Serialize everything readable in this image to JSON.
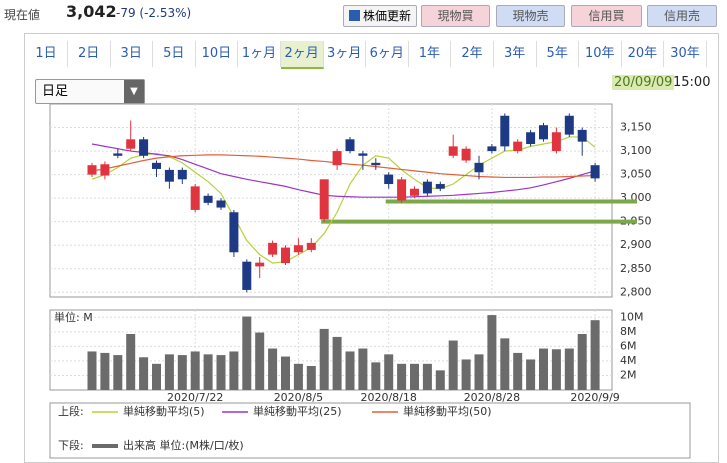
{
  "header": {
    "price_label": "現在値",
    "price": "3,042",
    "change": "-79 (-2.53%)",
    "buttons": [
      "株価更新",
      "現物買",
      "現物売",
      "信用買",
      "信用売"
    ]
  },
  "period_tabs": [
    "1日",
    "2日",
    "3日",
    "5日",
    "10日",
    "1ヶ月",
    "2ヶ月",
    "3ヶ月",
    "6ヶ月",
    "1年",
    "2年",
    "3年",
    "5年",
    "10年",
    "20年",
    "30年"
  ],
  "active_tab": 6,
  "interval_select": "日足",
  "date": "20/09/09",
  "time": "15:00",
  "legend": {
    "upper": "上段:",
    "lower": "下段:"
  },
  "chart_data": [
    {
      "type": "candlestick",
      "up_color": "#e0343f",
      "down_color": "#1f3a85",
      "open": [
        3050,
        3048,
        3095,
        3105,
        3125,
        3075,
        3060,
        3060,
        2975,
        3005,
        2995,
        2970,
        2865,
        2855,
        2880,
        2862,
        2885,
        2890,
        2955,
        3070,
        3125,
        3095,
        3075,
        3050,
        2995,
        3005,
        3035,
        3030,
        3090,
        3080,
        3075,
        3110,
        3175,
        3100,
        3140,
        3155,
        3100,
        3175,
        3145,
        3070
      ],
      "high": [
        3075,
        3078,
        3105,
        3165,
        3130,
        3080,
        3065,
        3065,
        3030,
        3010,
        3000,
        2975,
        2870,
        2875,
        2910,
        2900,
        2915,
        2915,
        3040,
        3105,
        3130,
        3100,
        3085,
        3055,
        3045,
        3025,
        3040,
        3035,
        3135,
        3110,
        3090,
        3115,
        3180,
        3125,
        3145,
        3160,
        3150,
        3180,
        3150,
        3075
      ],
      "low": [
        3045,
        3040,
        3085,
        3100,
        3085,
        3045,
        3020,
        3030,
        2970,
        2985,
        2975,
        2875,
        2800,
        2830,
        2875,
        2858,
        2880,
        2885,
        2950,
        3060,
        3095,
        3060,
        3060,
        3020,
        2990,
        3000,
        3005,
        3015,
        3085,
        3075,
        3040,
        3095,
        3100,
        3095,
        3110,
        3120,
        3095,
        3130,
        3090,
        3035
      ],
      "close": [
        3070,
        3072,
        3090,
        3125,
        3090,
        3062,
        3035,
        3040,
        3025,
        2990,
        2980,
        2885,
        2805,
        2863,
        2905,
        2895,
        2900,
        2905,
        3040,
        3100,
        3100,
        3090,
        3070,
        3030,
        3040,
        3020,
        3010,
        3020,
        3110,
        3105,
        3055,
        3100,
        3110,
        3120,
        3115,
        3125,
        3140,
        3135,
        3120,
        3042
      ],
      "series": [
        {
          "name": "単純移動平均(5)",
          "color": "#b5d334",
          "values": [
            3040,
            3050,
            3065,
            3085,
            3092,
            3095,
            3088,
            3075,
            3055,
            3035,
            3010,
            2960,
            2910,
            2880,
            2862,
            2865,
            2880,
            2895,
            2925,
            2970,
            3030,
            3070,
            3090,
            3085,
            3060,
            3040,
            3022,
            3020,
            3030,
            3050,
            3070,
            3085,
            3100,
            3102,
            3110,
            3115,
            3120,
            3130,
            3130,
            3108
          ]
        },
        {
          "name": "単純移動平均(25)",
          "color": "#9b35c8",
          "values": [
            3115,
            3110,
            3105,
            3100,
            3097,
            3093,
            3090,
            3082,
            3072,
            3062,
            3052,
            3046,
            3040,
            3035,
            3030,
            3025,
            3018,
            3012,
            3006,
            3004,
            3003,
            3002,
            3002,
            3002,
            3002,
            3003,
            3004,
            3005,
            3006,
            3008,
            3010,
            3012,
            3015,
            3018,
            3022,
            3028,
            3035,
            3042,
            3050,
            3058
          ]
        },
        {
          "name": "単純移動平均(50)",
          "color": "#e0603a",
          "values": [
            3058,
            3062,
            3068,
            3074,
            3080,
            3085,
            3088,
            3090,
            3091,
            3092,
            3092,
            3091,
            3090,
            3089,
            3087,
            3085,
            3083,
            3080,
            3078,
            3075,
            3072,
            3070,
            3067,
            3064,
            3061,
            3058,
            3055,
            3052,
            3050,
            3048,
            3046,
            3045,
            3044,
            3044,
            3044,
            3045,
            3045,
            3046,
            3047,
            3048
          ]
        }
      ],
      "support_lines": [
        {
          "value": 2993,
          "start": 23
        },
        {
          "value": 2950,
          "start": 18
        }
      ],
      "support_color": "#7aa84a",
      "ylim": [
        2790,
        3200
      ],
      "yticks": [
        {
          "value": 2800,
          "label": "2,800"
        },
        {
          "value": 2850,
          "label": "2,850"
        },
        {
          "value": 2900,
          "label": "2,900"
        },
        {
          "value": 2950,
          "label": "2,950"
        },
        {
          "value": 3000,
          "label": "3,000"
        },
        {
          "value": 3050,
          "label": "3,050"
        },
        {
          "value": 3100,
          "label": "3,100"
        },
        {
          "value": 3150,
          "label": "3,150"
        }
      ],
      "grid": true
    },
    {
      "type": "bar",
      "unit_label": "単位: M",
      "name": "出来高 単位:(M株/口/枚)",
      "color": "#6b6b6b",
      "categories": [
        null,
        null,
        null,
        null,
        null,
        null,
        null,
        null,
        "2020/7/22",
        null,
        null,
        null,
        null,
        null,
        null,
        null,
        "2020/8/5",
        null,
        null,
        null,
        null,
        null,
        null,
        "2020/8/18",
        null,
        null,
        null,
        null,
        null,
        null,
        null,
        "2020/8/28",
        null,
        null,
        null,
        null,
        null,
        null,
        null,
        "2020/9/9"
      ],
      "values": [
        5.3,
        5.1,
        4.8,
        7.7,
        4.5,
        3.6,
        4.9,
        4.8,
        5.3,
        4.9,
        4.8,
        5.3,
        10.1,
        7.9,
        5.7,
        4.6,
        3.6,
        3.3,
        8.4,
        7.3,
        5.3,
        5.7,
        3.8,
        4.9,
        3.6,
        3.6,
        3.6,
        2.7,
        6.8,
        4.2,
        4.9,
        10.3,
        7.1,
        5.1,
        4.2,
        5.7,
        5.6,
        5.7,
        7.7,
        9.6
      ],
      "ylim": [
        0,
        11
      ],
      "yticks": [
        {
          "value": 2,
          "label": "2M"
        },
        {
          "value": 4,
          "label": "4M"
        },
        {
          "value": 6,
          "label": "6M"
        },
        {
          "value": 8,
          "label": "8M"
        },
        {
          "value": 10,
          "label": "10M"
        }
      ],
      "grid": true
    }
  ]
}
